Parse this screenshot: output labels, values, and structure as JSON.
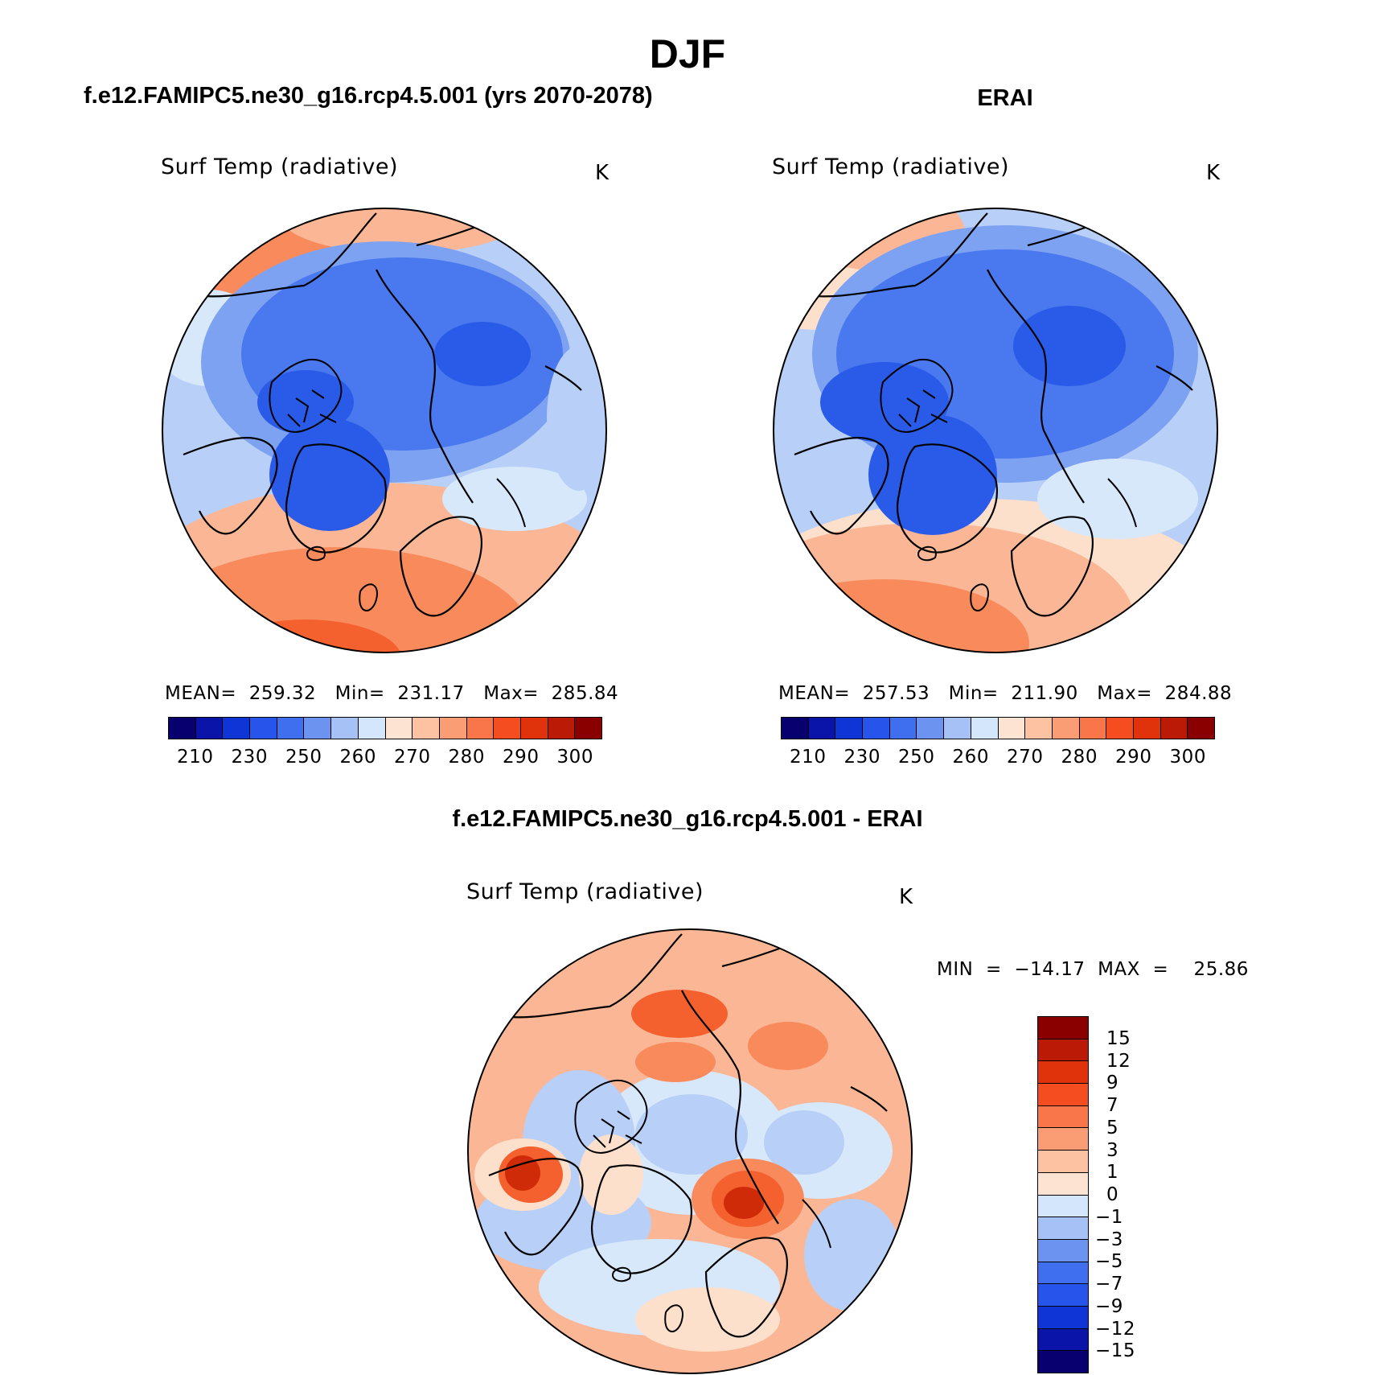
{
  "page": {
    "title": "DJF",
    "left_panel_title": "f.e12.FAMIPC5.ne30_g16.rcp4.5.001 (yrs 2070-2078)",
    "right_panel_title": "ERAI",
    "diff_panel_title": "f.e12.FAMIPC5.ne30_g16.rcp4.5.001 - ERAI"
  },
  "panels": {
    "model": {
      "variable": "Surf Temp (radiative)",
      "units": "K",
      "stats": "MEAN=  259.32   Min=  231.17   Max=  285.84"
    },
    "obs": {
      "variable": "Surf Temp (radiative)",
      "units": "K",
      "stats": "MEAN=  257.53   Min=  211.90   Max=  284.88"
    },
    "diff": {
      "variable": "Surf Temp (radiative)",
      "units": "K",
      "stats": "MIN  =  −14.17  MAX  =    25.86"
    }
  },
  "abs_colorbar": {
    "colors": [
      "#08006e",
      "#0a14a8",
      "#1035d6",
      "#2755ec",
      "#3f6fee",
      "#6d93f0",
      "#a6c1f6",
      "#d4e6fb",
      "#fde3d1",
      "#fcc2a2",
      "#fa9d74",
      "#f8764a",
      "#f54d1f",
      "#e0330c",
      "#bb1a06",
      "#8a0000"
    ],
    "tick_labels": [
      "210",
      "230",
      "250",
      "260",
      "270",
      "280",
      "290",
      "300"
    ]
  },
  "diff_colorbar": {
    "colors": [
      "#8a0000",
      "#bb1a06",
      "#e0330c",
      "#f54d1f",
      "#f8764a",
      "#fa9d74",
      "#fcc2a2",
      "#fde3d1",
      "#d4e6fb",
      "#a6c1f6",
      "#6d93f0",
      "#3f6fee",
      "#2755ec",
      "#1035d6",
      "#0a14a8",
      "#08006e"
    ],
    "tick_labels": [
      "15",
      "12",
      "9",
      "7",
      "5",
      "3",
      "1",
      "0",
      "−1",
      "−3",
      "−5",
      "−7",
      "−9",
      "−12",
      "−15"
    ]
  },
  "palette": {
    "cold_deep": "#2a5be8",
    "cold_mid": "#4a78ee",
    "cold_light": "#7ea2f2",
    "cool_pale": "#b8cff7",
    "near_zero_blue": "#d8e8fb",
    "near_zero_red": "#fde0cc",
    "warm_light": "#fbb795",
    "warm_mid": "#f88a5c",
    "warm_deep": "#f4602e",
    "warm_max": "#cf2b08"
  }
}
